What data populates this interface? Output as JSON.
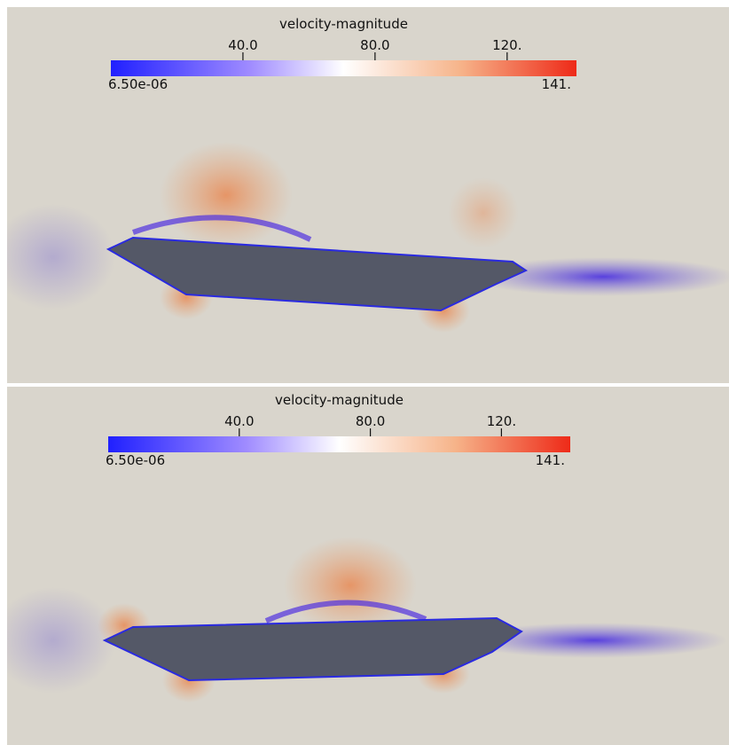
{
  "panels": [
    {
      "colorbar": {
        "title": "velocity-magnitude",
        "min": {
          "value": 6.5e-06,
          "label": "6.50e-06"
        },
        "max": {
          "value": 141,
          "label": "141."
        },
        "ticks": [
          {
            "value": 40,
            "label": "40.0"
          },
          {
            "value": 80,
            "label": "80.0"
          },
          {
            "value": 120,
            "label": "120."
          }
        ]
      }
    },
    {
      "colorbar": {
        "title": "velocity-magnitude",
        "min": {
          "value": 6.5e-06,
          "label": "6.50e-06"
        },
        "max": {
          "value": 141,
          "label": "141."
        },
        "ticks": [
          {
            "value": 40,
            "label": "40.0"
          },
          {
            "value": 80,
            "label": "80.0"
          },
          {
            "value": 120,
            "label": "120."
          }
        ]
      }
    }
  ]
}
